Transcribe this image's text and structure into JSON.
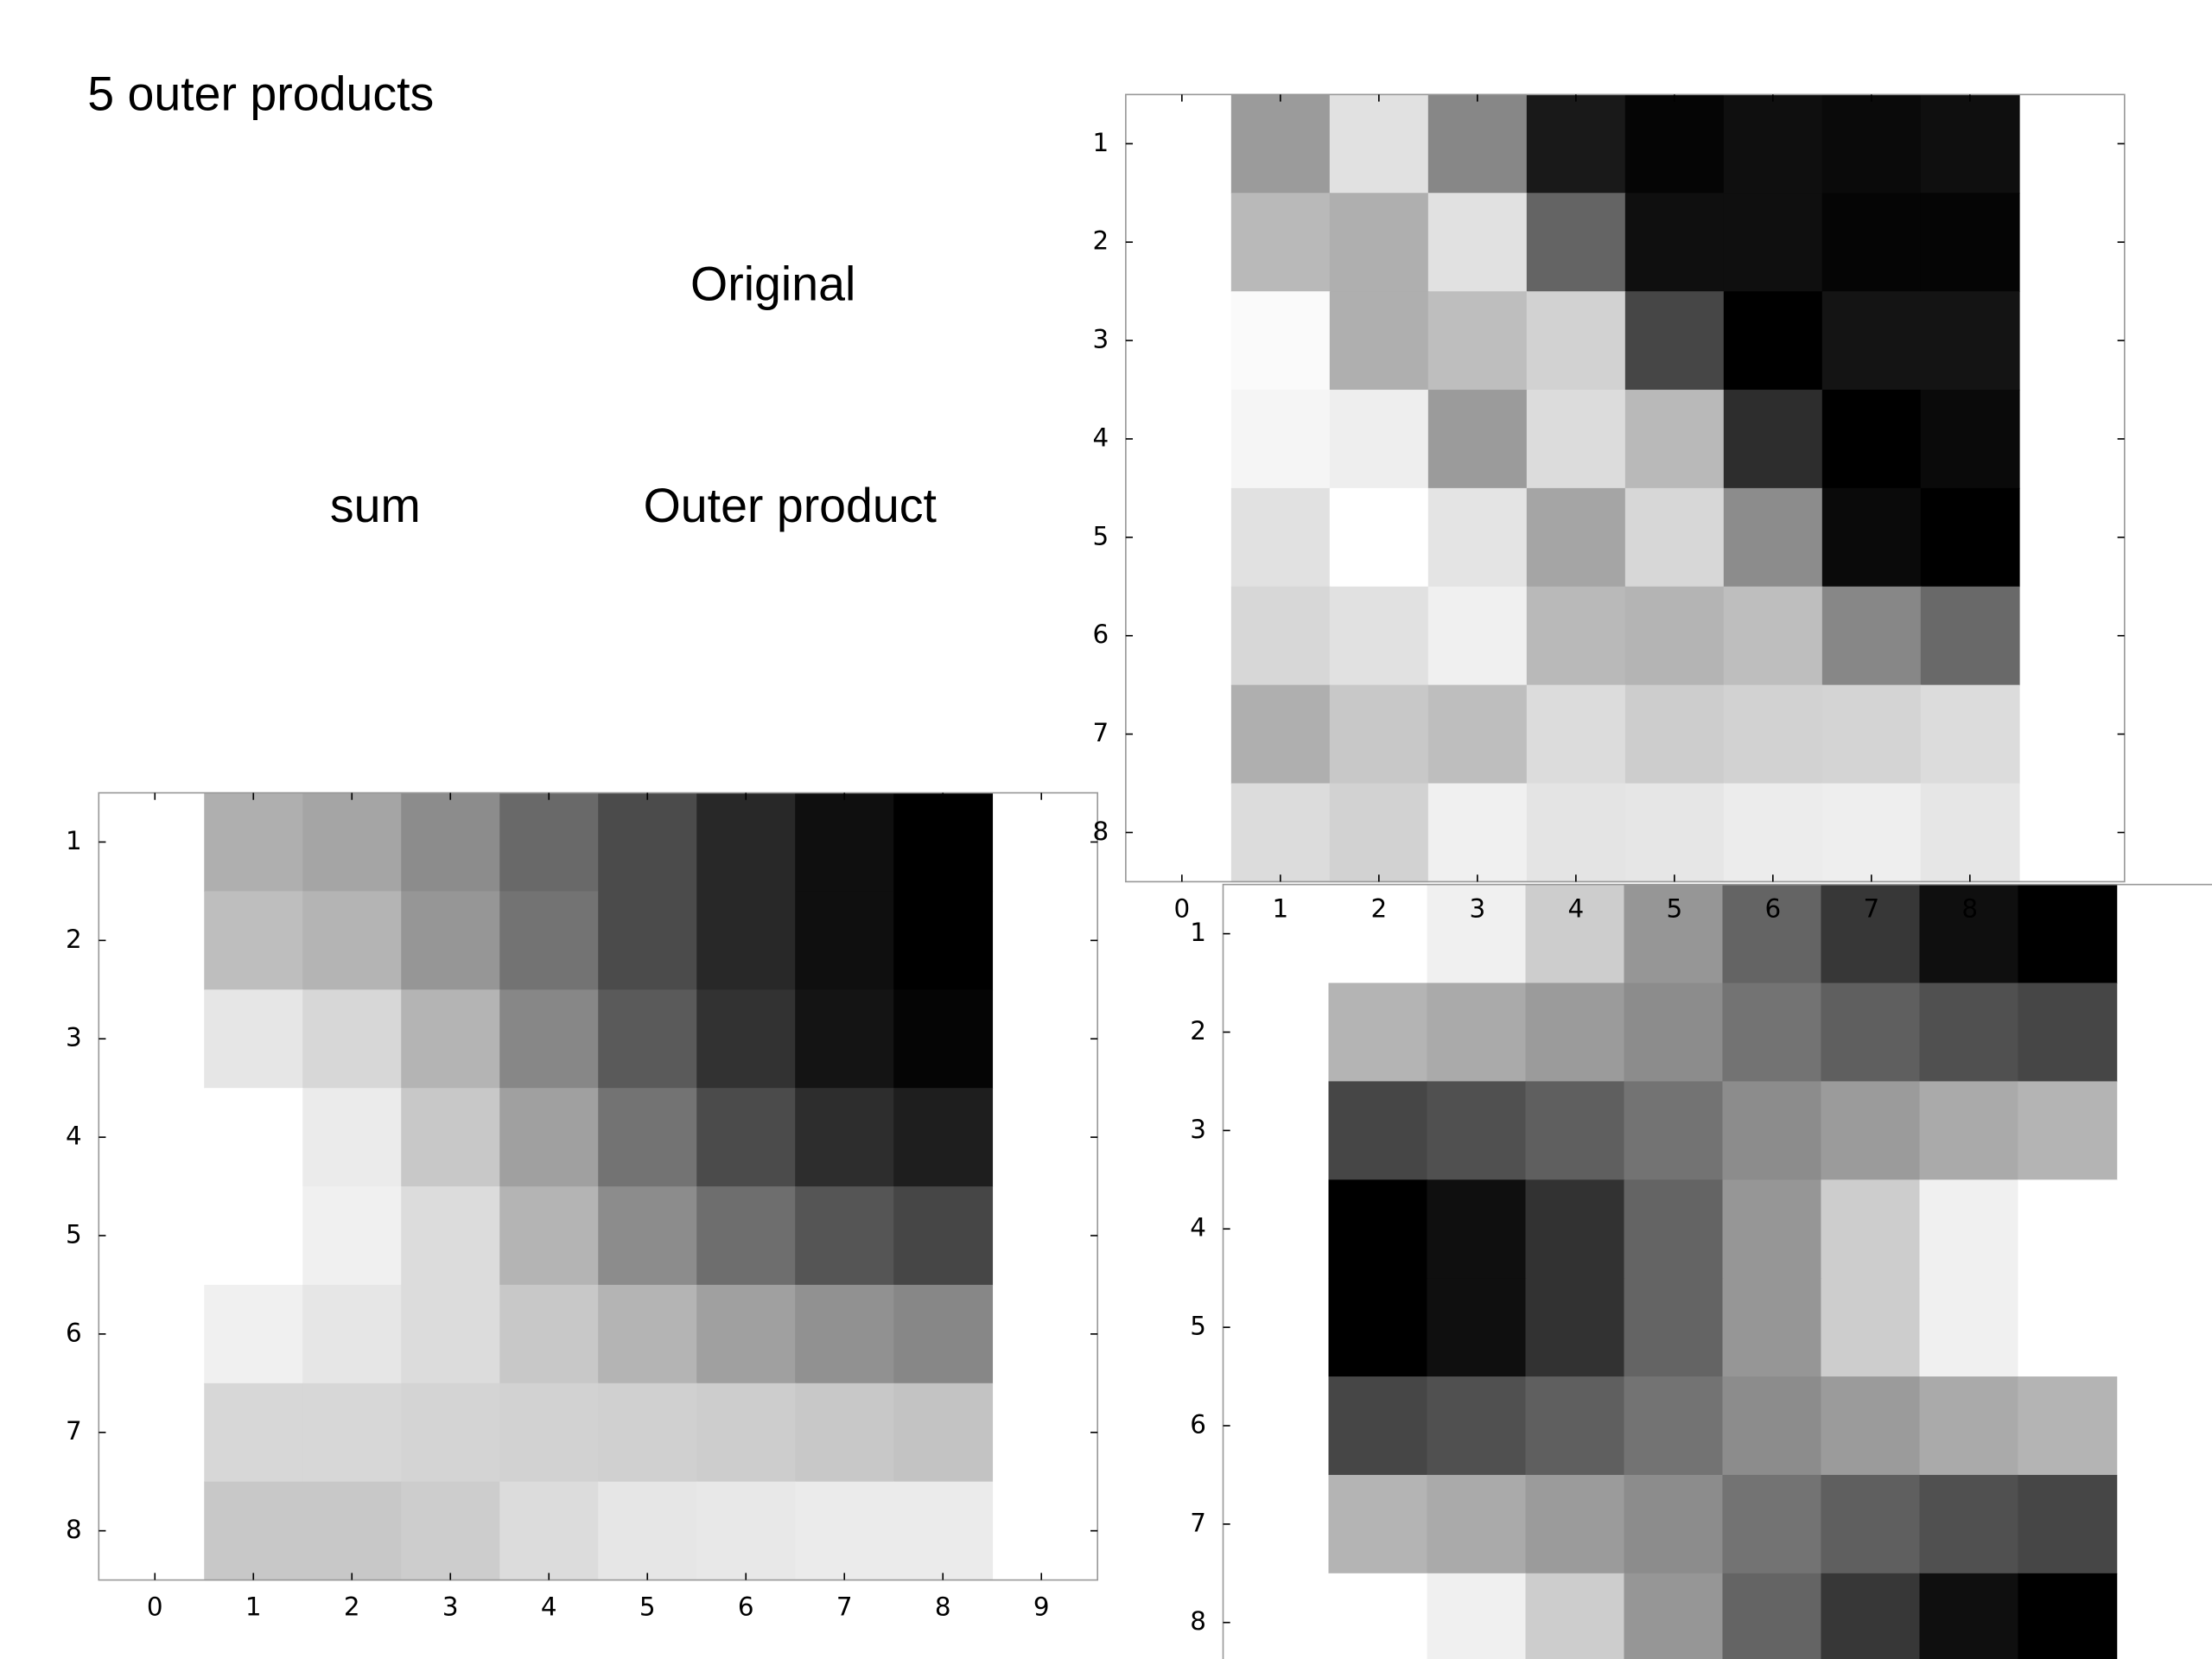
{
  "slide": {
    "title": "5 outer products",
    "labels": [
      "Original",
      "sum",
      "Outer product"
    ]
  },
  "chart_data": [
    {
      "type": "heatmap",
      "x": [
        1,
        2,
        3,
        4,
        5,
        6,
        7,
        8
      ],
      "y": [
        1,
        2,
        3,
        4,
        5,
        6,
        7,
        8
      ],
      "xlim": [
        -0.57,
        9.57
      ],
      "ylim": [
        0.5,
        8.5
      ],
      "yreverse": true,
      "xticks": [
        0,
        1,
        2,
        3,
        4,
        5,
        6,
        7,
        8
      ],
      "yticks": [
        1,
        2,
        3,
        4,
        5,
        6,
        7,
        8
      ],
      "values": [
        [
          155,
          225,
          135,
          25,
          5,
          15,
          10,
          15
        ],
        [
          185,
          175,
          225,
          100,
          15,
          15,
          5,
          5
        ],
        [
          250,
          175,
          190,
          210,
          70,
          0,
          20,
          20
        ],
        [
          245,
          238,
          155,
          220,
          185,
          45,
          0,
          10
        ],
        [
          225,
          255,
          228,
          165,
          215,
          140,
          10,
          0
        ],
        [
          215,
          225,
          240,
          185,
          180,
          190,
          135,
          105
        ],
        [
          175,
          200,
          190,
          220,
          205,
          210,
          212,
          220
        ],
        [
          220,
          210,
          240,
          228,
          230,
          236,
          238,
          230
        ]
      ]
    },
    {
      "type": "heatmap",
      "x": [
        1,
        2,
        3,
        4,
        5,
        6,
        7,
        8
      ],
      "y": [
        1,
        2,
        3,
        4,
        5,
        6,
        7,
        8
      ],
      "xlim": [
        -0.57,
        9.57
      ],
      "ylim": [
        0.5,
        8.5
      ],
      "yreverse": true,
      "xticks": [
        0,
        1,
        2,
        3,
        4,
        5,
        6,
        7,
        8,
        9
      ],
      "yticks": [
        1,
        2,
        3,
        4,
        5,
        6,
        7,
        8
      ],
      "values": [
        [
          175,
          165,
          140,
          105,
          75,
          40,
          15,
          0
        ],
        [
          190,
          180,
          150,
          115,
          75,
          40,
          15,
          0
        ],
        [
          230,
          215,
          180,
          135,
          90,
          50,
          20,
          5
        ],
        [
          255,
          235,
          200,
          160,
          115,
          75,
          45,
          30
        ],
        [
          255,
          240,
          220,
          180,
          140,
          110,
          85,
          70
        ],
        [
          240,
          230,
          220,
          200,
          180,
          160,
          145,
          135
        ],
        [
          215,
          215,
          212,
          210,
          208,
          205,
          200,
          195
        ],
        [
          200,
          200,
          205,
          220,
          230,
          232,
          235,
          235
        ]
      ]
    },
    {
      "type": "heatmap",
      "x": [
        1,
        2,
        3,
        4,
        5,
        6,
        7,
        8
      ],
      "y": [
        1,
        2,
        3,
        4,
        5,
        6,
        7,
        8
      ],
      "xlim": [
        -0.57,
        9.57
      ],
      "ylim": [
        0.5,
        8.5
      ],
      "yreverse": true,
      "yticks": [
        1,
        2,
        3,
        4,
        5,
        6,
        7,
        8
      ],
      "values": [
        [
          255,
          240,
          205,
          150,
          100,
          55,
          15,
          0
        ],
        [
          180,
          170,
          155,
          140,
          115,
          95,
          80,
          70
        ],
        [
          70,
          80,
          95,
          115,
          140,
          155,
          170,
          180
        ],
        [
          0,
          15,
          50,
          100,
          150,
          205,
          240,
          255
        ],
        [
          0,
          15,
          50,
          100,
          150,
          205,
          240,
          255
        ],
        [
          70,
          80,
          95,
          115,
          140,
          155,
          170,
          180
        ],
        [
          180,
          170,
          155,
          140,
          115,
          95,
          80,
          70
        ],
        [
          255,
          240,
          205,
          150,
          100,
          55,
          15,
          0
        ]
      ]
    }
  ]
}
